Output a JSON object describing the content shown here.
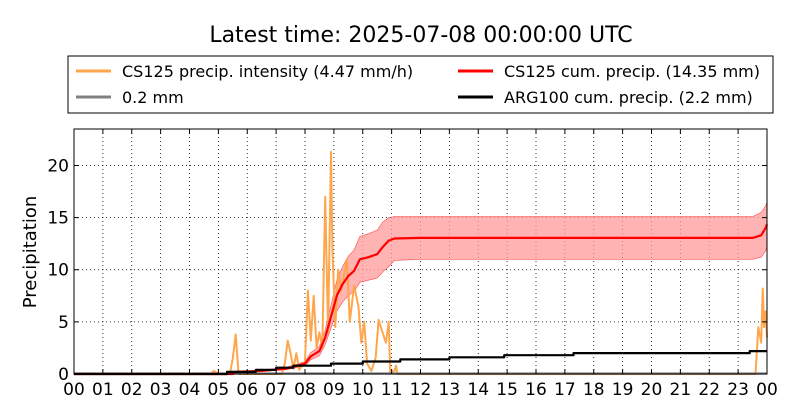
{
  "chart_data": {
    "type": "line",
    "title": "Latest time: 2025-07-08 00:00:00 UTC",
    "ylabel": "Precipitation",
    "xlabel": "",
    "xlim": [
      0,
      24
    ],
    "ylim": [
      0,
      23.5
    ],
    "grid": true,
    "legend_position": "top",
    "xticks": [
      "00",
      "01",
      "02",
      "03",
      "04",
      "05",
      "06",
      "07",
      "08",
      "09",
      "10",
      "11",
      "12",
      "13",
      "14",
      "15",
      "16",
      "17",
      "18",
      "19",
      "20",
      "21",
      "22",
      "23",
      "00"
    ],
    "yticks": [
      0,
      5,
      10,
      15,
      20
    ],
    "series": [
      {
        "name": "CS125 precip. intensity (4.47 mm/h)",
        "kind": "intensity",
        "color": "#ffa64d",
        "points": [
          [
            0,
            0
          ],
          [
            4.7,
            0
          ],
          [
            4.85,
            0.3
          ],
          [
            5.0,
            0
          ],
          [
            5.4,
            0
          ],
          [
            5.5,
            1.5
          ],
          [
            5.6,
            3.8
          ],
          [
            5.7,
            0
          ],
          [
            7.2,
            0
          ],
          [
            7.3,
            1.0
          ],
          [
            7.4,
            3.2
          ],
          [
            7.5,
            2.0
          ],
          [
            7.6,
            0.5
          ],
          [
            7.7,
            2.0
          ],
          [
            7.8,
            0.4
          ],
          [
            8.0,
            1.2
          ],
          [
            8.1,
            8.0
          ],
          [
            8.2,
            3.2
          ],
          [
            8.3,
            7.5
          ],
          [
            8.4,
            2.5
          ],
          [
            8.5,
            4.0
          ],
          [
            8.6,
            2.5
          ],
          [
            8.7,
            17.0
          ],
          [
            8.8,
            4.0
          ],
          [
            8.9,
            21.3
          ],
          [
            8.95,
            12.0
          ],
          [
            9.05,
            4.5
          ],
          [
            9.15,
            10.0
          ],
          [
            9.25,
            8.0
          ],
          [
            9.35,
            9.5
          ],
          [
            9.45,
            11.0
          ],
          [
            9.55,
            5.0
          ],
          [
            9.7,
            8.5
          ],
          [
            9.85,
            6.5
          ],
          [
            9.95,
            3.0
          ],
          [
            10.05,
            5.0
          ],
          [
            10.15,
            1.0
          ],
          [
            10.3,
            0.3
          ],
          [
            10.45,
            1.6
          ],
          [
            10.55,
            5.2
          ],
          [
            10.65,
            4.3
          ],
          [
            10.8,
            3.0
          ],
          [
            10.9,
            5.0
          ],
          [
            10.95,
            0.2
          ],
          [
            11.1,
            0.3
          ],
          [
            11.15,
            0.8
          ],
          [
            11.2,
            0
          ],
          [
            23.6,
            0
          ],
          [
            23.7,
            4.5
          ],
          [
            23.8,
            3.0
          ],
          [
            23.85,
            8.2
          ],
          [
            23.9,
            4.5
          ],
          [
            23.95,
            6.0
          ],
          [
            24,
            3.5
          ]
        ]
      },
      {
        "name": "0.2 mm",
        "kind": "threshold",
        "color": "#808080",
        "points": [
          [
            0,
            0.05
          ],
          [
            24,
            0.05
          ]
        ]
      },
      {
        "name": "CS125 cum. precip. (14.35 mm)",
        "kind": "cumulative",
        "color": "#ff0000",
        "band_color": "#ff9999",
        "points": [
          [
            0,
            0
          ],
          [
            5.5,
            0
          ],
          [
            5.6,
            0.2
          ],
          [
            6.5,
            0.3
          ],
          [
            7.3,
            0.5
          ],
          [
            7.6,
            0.7
          ],
          [
            8.0,
            1.0
          ],
          [
            8.2,
            1.7
          ],
          [
            8.5,
            2.2
          ],
          [
            8.7,
            3.5
          ],
          [
            8.9,
            5.5
          ],
          [
            9.1,
            7.5
          ],
          [
            9.3,
            8.6
          ],
          [
            9.5,
            9.4
          ],
          [
            9.7,
            9.9
          ],
          [
            9.9,
            11.0
          ],
          [
            10.2,
            11.2
          ],
          [
            10.5,
            11.5
          ],
          [
            10.7,
            12.2
          ],
          [
            10.9,
            12.8
          ],
          [
            11.1,
            13.0
          ],
          [
            12,
            13.05
          ],
          [
            20,
            13.05
          ],
          [
            23.5,
            13.05
          ],
          [
            23.8,
            13.3
          ],
          [
            23.95,
            14.0
          ],
          [
            24,
            14.35
          ]
        ],
        "band_upper": [
          [
            0,
            0
          ],
          [
            5.5,
            0
          ],
          [
            5.6,
            0.25
          ],
          [
            6.5,
            0.36
          ],
          [
            7.3,
            0.6
          ],
          [
            7.6,
            0.85
          ],
          [
            8.0,
            1.2
          ],
          [
            8.2,
            2.05
          ],
          [
            8.5,
            2.65
          ],
          [
            8.7,
            4.2
          ],
          [
            8.9,
            6.6
          ],
          [
            9.1,
            9.0
          ],
          [
            9.3,
            10.3
          ],
          [
            9.5,
            11.3
          ],
          [
            9.7,
            11.9
          ],
          [
            9.9,
            13.2
          ],
          [
            10.2,
            13.45
          ],
          [
            10.5,
            13.8
          ],
          [
            10.7,
            14.6
          ],
          [
            10.9,
            15.0
          ],
          [
            11.1,
            15.1
          ],
          [
            12,
            15.1
          ],
          [
            20,
            15.1
          ],
          [
            23.5,
            15.1
          ],
          [
            23.8,
            15.5
          ],
          [
            23.95,
            16.1
          ],
          [
            24,
            16.5
          ]
        ],
        "band_lower": [
          [
            0,
            0
          ],
          [
            5.5,
            0
          ],
          [
            5.6,
            0.15
          ],
          [
            6.5,
            0.24
          ],
          [
            7.3,
            0.4
          ],
          [
            7.6,
            0.55
          ],
          [
            8.0,
            0.8
          ],
          [
            8.2,
            1.35
          ],
          [
            8.5,
            1.75
          ],
          [
            8.7,
            2.8
          ],
          [
            8.9,
            4.4
          ],
          [
            9.1,
            6.0
          ],
          [
            9.3,
            6.9
          ],
          [
            9.5,
            7.5
          ],
          [
            9.7,
            7.9
          ],
          [
            9.9,
            8.8
          ],
          [
            10.2,
            9.0
          ],
          [
            10.5,
            9.2
          ],
          [
            10.7,
            9.8
          ],
          [
            10.9,
            10.3
          ],
          [
            11.1,
            10.9
          ],
          [
            12,
            11.0
          ],
          [
            20,
            11.0
          ],
          [
            23.5,
            11.0
          ],
          [
            23.8,
            11.2
          ],
          [
            23.95,
            11.8
          ],
          [
            24,
            12.2
          ]
        ]
      },
      {
        "name": "ARG100 cum. precip. (2.2 mm)",
        "kind": "cumulative",
        "color": "#000000",
        "step": true,
        "points": [
          [
            0,
            0
          ],
          [
            5.3,
            0
          ],
          [
            5.3,
            0.2
          ],
          [
            6.3,
            0.2
          ],
          [
            6.3,
            0.4
          ],
          [
            7.0,
            0.4
          ],
          [
            7.0,
            0.6
          ],
          [
            7.6,
            0.6
          ],
          [
            7.6,
            0.8
          ],
          [
            8.9,
            0.8
          ],
          [
            8.9,
            1.0
          ],
          [
            10.0,
            1.0
          ],
          [
            10.0,
            1.2
          ],
          [
            11.3,
            1.2
          ],
          [
            11.3,
            1.4
          ],
          [
            13.0,
            1.4
          ],
          [
            13.0,
            1.6
          ],
          [
            14.9,
            1.6
          ],
          [
            14.9,
            1.8
          ],
          [
            17.3,
            1.8
          ],
          [
            17.3,
            2.0
          ],
          [
            23.4,
            2.0
          ],
          [
            23.4,
            2.2
          ],
          [
            24,
            2.2
          ]
        ]
      }
    ]
  }
}
